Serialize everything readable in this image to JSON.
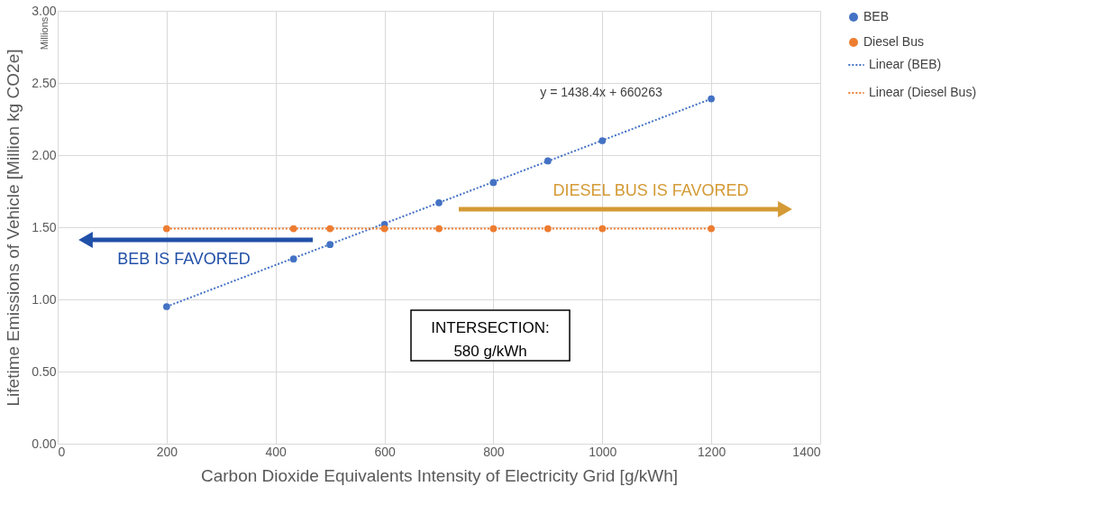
{
  "chart_data": {
    "type": "scatter",
    "xlabel": "Carbon Dioxide Equivalents Intensity of Electricity Grid [g/kWh]",
    "ylabel": "Lifetime Emissions of Vehicle [Million kg CO2e]",
    "series": [
      {
        "name": "BEB",
        "marker": "circle",
        "color": "#4472c4",
        "x": [
          200,
          433,
          500,
          600,
          700,
          800,
          900,
          1000,
          1200
        ],
        "values": [
          0.95,
          1.28,
          1.38,
          1.52,
          1.67,
          1.81,
          1.96,
          2.1,
          2.39
        ]
      },
      {
        "name": "Diesel Bus",
        "marker": "circle",
        "color": "#ed7d31",
        "x": [
          200,
          433,
          500,
          600,
          700,
          800,
          900,
          1000,
          1200
        ],
        "values": [
          1.49,
          1.49,
          1.49,
          1.49,
          1.49,
          1.49,
          1.49,
          1.49,
          1.49
        ]
      },
      {
        "name": "Linear (BEB)",
        "type": "line",
        "marker": "none",
        "line_style": "dotted",
        "color": "#4472c4",
        "x": [
          200,
          1200
        ],
        "values": [
          0.95,
          2.39
        ]
      },
      {
        "name": "Linear (Diesel Bus)",
        "type": "line",
        "marker": "none",
        "line_style": "dotted",
        "color": "#ed7d31",
        "x": [
          200,
          1200
        ],
        "values": [
          1.49,
          1.49
        ]
      }
    ],
    "xlim": [
      0,
      1400
    ],
    "xticks": [
      0,
      200,
      400,
      600,
      800,
      1000,
      1200,
      1400
    ],
    "ylim": [
      0,
      3
    ],
    "yticks": [
      {
        "value": 0,
        "label": "0.00"
      },
      {
        "value": 0.5,
        "label": "0.50"
      },
      {
        "value": 1,
        "label": "1.00"
      },
      {
        "value": 1.5,
        "label": "1.50"
      },
      {
        "value": 2,
        "label": "2.00"
      },
      {
        "value": 2.5,
        "label": "2.50"
      },
      {
        "value": 3,
        "label": "3.00"
      }
    ],
    "grid": true,
    "legend": "right",
    "annotations": [
      "Millions",
      "y = 1438.4x + 660263",
      "DIESEL BUS IS FAVORED",
      "BEB IS FAVORED",
      "INTERSECTION:\n580 g/kWh"
    ]
  }
}
